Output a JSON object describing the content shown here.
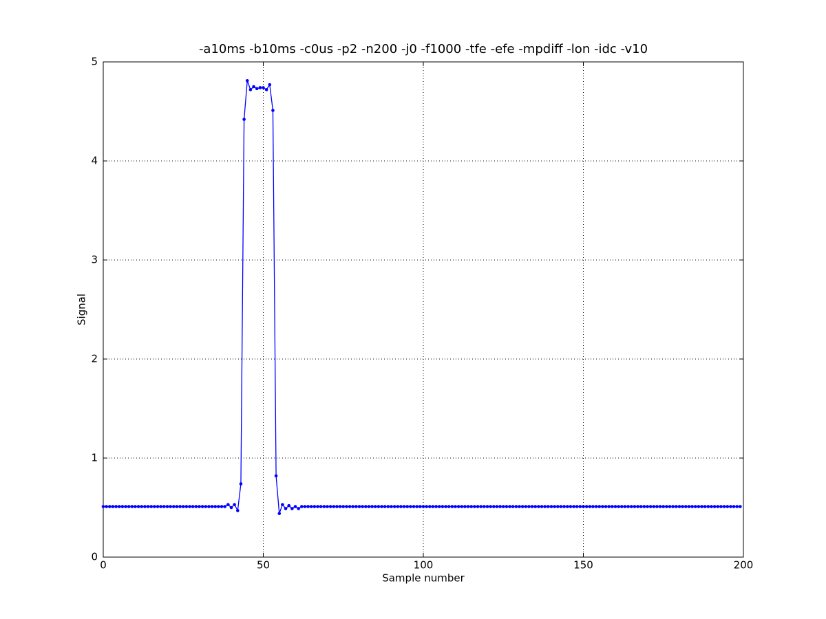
{
  "chart_data": {
    "type": "line",
    "title": "-a10ms -b10ms -c0us -p2 -n200 -j0 -f1000 -tfe -efe -mpdiff -lon -idc -v10",
    "xlabel": "Sample number",
    "ylabel": "Signal",
    "x": [
      0,
      1,
      2,
      3,
      4,
      5,
      6,
      7,
      8,
      9,
      10,
      11,
      12,
      13,
      14,
      15,
      16,
      17,
      18,
      19,
      20,
      21,
      22,
      23,
      24,
      25,
      26,
      27,
      28,
      29,
      30,
      31,
      32,
      33,
      34,
      35,
      36,
      37,
      38,
      39,
      40,
      41,
      42,
      43,
      44,
      45,
      46,
      47,
      48,
      49,
      50,
      51,
      52,
      53,
      54,
      55,
      56,
      57,
      58,
      59,
      60,
      61,
      62,
      63,
      64,
      65,
      66,
      67,
      68,
      69,
      70,
      71,
      72,
      73,
      74,
      75,
      76,
      77,
      78,
      79,
      80,
      81,
      82,
      83,
      84,
      85,
      86,
      87,
      88,
      89,
      90,
      91,
      92,
      93,
      94,
      95,
      96,
      97,
      98,
      99,
      100,
      101,
      102,
      103,
      104,
      105,
      106,
      107,
      108,
      109,
      110,
      111,
      112,
      113,
      114,
      115,
      116,
      117,
      118,
      119,
      120,
      121,
      122,
      123,
      124,
      125,
      126,
      127,
      128,
      129,
      130,
      131,
      132,
      133,
      134,
      135,
      136,
      137,
      138,
      139,
      140,
      141,
      142,
      143,
      144,
      145,
      146,
      147,
      148,
      149,
      150,
      151,
      152,
      153,
      154,
      155,
      156,
      157,
      158,
      159,
      160,
      161,
      162,
      163,
      164,
      165,
      166,
      167,
      168,
      169,
      170,
      171,
      172,
      173,
      174,
      175,
      176,
      177,
      178,
      179,
      180,
      181,
      182,
      183,
      184,
      185,
      186,
      187,
      188,
      189,
      190,
      191,
      192,
      193,
      194,
      195,
      196,
      197,
      198,
      199
    ],
    "series": [
      {
        "color": "#0000ff",
        "values": [
          0.51,
          0.51,
          0.51,
          0.51,
          0.51,
          0.51,
          0.51,
          0.51,
          0.51,
          0.51,
          0.51,
          0.51,
          0.51,
          0.51,
          0.51,
          0.51,
          0.51,
          0.51,
          0.51,
          0.51,
          0.51,
          0.51,
          0.51,
          0.51,
          0.51,
          0.51,
          0.51,
          0.51,
          0.51,
          0.51,
          0.51,
          0.51,
          0.51,
          0.51,
          0.51,
          0.51,
          0.51,
          0.51,
          0.51,
          0.53,
          0.5,
          0.53,
          0.47,
          0.74,
          4.42,
          4.81,
          4.72,
          4.75,
          4.73,
          4.74,
          4.74,
          4.72,
          4.77,
          4.51,
          0.82,
          0.44,
          0.53,
          0.49,
          0.52,
          0.49,
          0.51,
          0.49,
          0.51,
          0.51,
          0.51,
          0.51,
          0.51,
          0.51,
          0.51,
          0.51,
          0.51,
          0.51,
          0.51,
          0.51,
          0.51,
          0.51,
          0.51,
          0.51,
          0.51,
          0.51,
          0.51,
          0.51,
          0.51,
          0.51,
          0.51,
          0.51,
          0.51,
          0.51,
          0.51,
          0.51,
          0.51,
          0.51,
          0.51,
          0.51,
          0.51,
          0.51,
          0.51,
          0.51,
          0.51,
          0.51,
          0.51,
          0.51,
          0.51,
          0.51,
          0.51,
          0.51,
          0.51,
          0.51,
          0.51,
          0.51,
          0.51,
          0.51,
          0.51,
          0.51,
          0.51,
          0.51,
          0.51,
          0.51,
          0.51,
          0.51,
          0.51,
          0.51,
          0.51,
          0.51,
          0.51,
          0.51,
          0.51,
          0.51,
          0.51,
          0.51,
          0.51,
          0.51,
          0.51,
          0.51,
          0.51,
          0.51,
          0.51,
          0.51,
          0.51,
          0.51,
          0.51,
          0.51,
          0.51,
          0.51,
          0.51,
          0.51,
          0.51,
          0.51,
          0.51,
          0.51,
          0.51,
          0.51,
          0.51,
          0.51,
          0.51,
          0.51,
          0.51,
          0.51,
          0.51,
          0.51,
          0.51,
          0.51,
          0.51,
          0.51,
          0.51,
          0.51,
          0.51,
          0.51,
          0.51,
          0.51,
          0.51,
          0.51,
          0.51,
          0.51,
          0.51,
          0.51,
          0.51,
          0.51,
          0.51,
          0.51,
          0.51,
          0.51,
          0.51,
          0.51,
          0.51,
          0.51,
          0.51,
          0.51,
          0.51,
          0.51,
          0.51,
          0.51,
          0.51,
          0.51,
          0.51,
          0.51,
          0.51,
          0.51,
          0.51,
          0.51
        ]
      }
    ],
    "xlim": [
      0,
      200
    ],
    "xticks": [
      0,
      50,
      100,
      150,
      200
    ],
    "ylim": [
      0,
      5
    ],
    "yticks": [
      0,
      1,
      2,
      3,
      4,
      5
    ],
    "grid": true
  }
}
